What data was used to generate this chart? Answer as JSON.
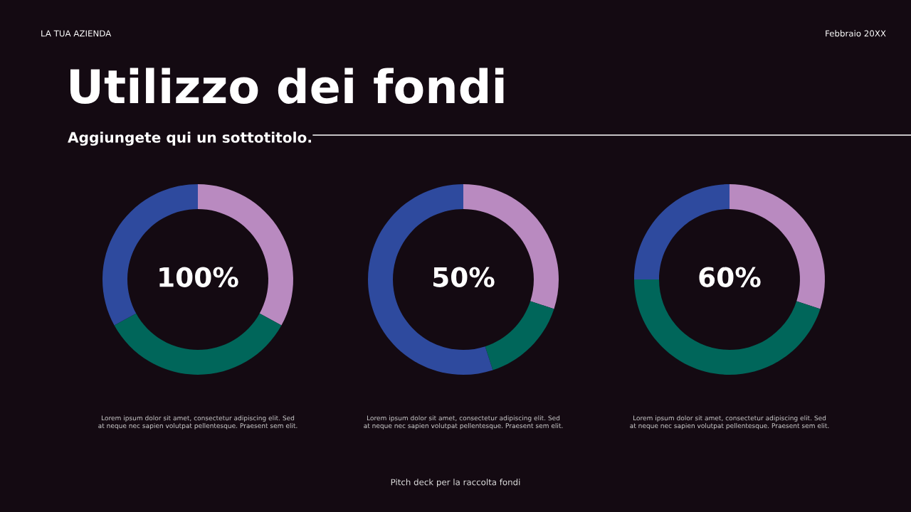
{
  "chart_data": [
    {
      "type": "donut",
      "title": "Utilizzo dei fondi",
      "subtitle": "Aggiungete qui un sottotitolo.",
      "categories": [
        null,
        null,
        null
      ],
      "values": [
        33,
        34,
        33
      ],
      "colors": [
        "#b98ac0",
        "#00665a",
        "#2e4a9e"
      ],
      "annotations": [
        "100%",
        "Lorem ipsum dolor sit amet, consectetur adipiscing elit. Sed at neque nec sapien volutpat pellentesque. Praesent sem elit.",
        "LA TUA AZIENDA",
        "Febbraio 20XX",
        "Pitch deck per la raccolta fondi"
      ]
    },
    {
      "type": "donut",
      "categories": [
        null,
        null,
        null
      ],
      "values": [
        30,
        15,
        55
      ],
      "colors": [
        "#b98ac0",
        "#00665a",
        "#2e4a9e"
      ],
      "annotations": [
        "50%",
        "Lorem ipsum dolor sit amet, consectetur adipiscing elit. Sed at neque nec sapien volutpat pellentesque. Praesent sem elit."
      ]
    },
    {
      "type": "donut",
      "categories": [
        null,
        null,
        null
      ],
      "values": [
        30,
        45,
        25
      ],
      "colors": [
        "#b98ac0",
        "#00665a",
        "#2e4a9e"
      ],
      "annotations": [
        "60%",
        "Lorem ipsum dolor sit amet, consectetur adipiscing elit. Sed at neque nec sapien volutpat pellentesque. Praesent sem elit."
      ]
    }
  ]
}
